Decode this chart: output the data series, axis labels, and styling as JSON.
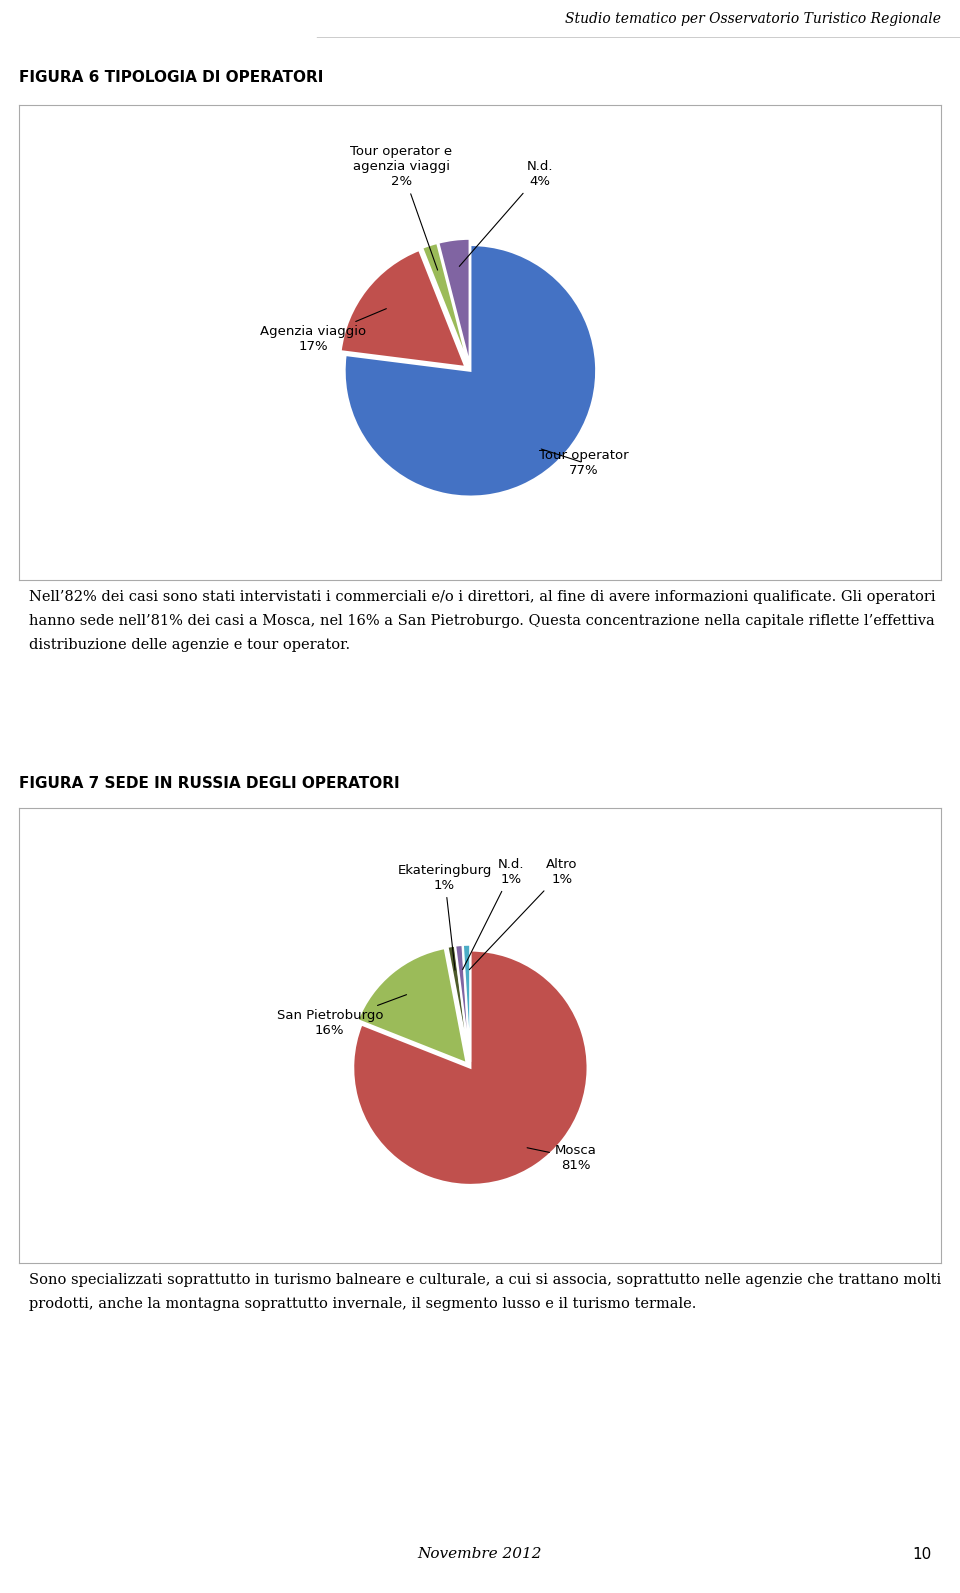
{
  "page_title": "Studio tematico per Osservatorio Turistico Regionale",
  "fig6_title": "FIGURA 6 TIPOLOGIA DI OPERATORI",
  "fig7_title": "FIGURA 7 SEDE IN RUSSIA DEGLI OPERATORI",
  "pie1_values": [
    77,
    17,
    2,
    4
  ],
  "pie1_colors": [
    "#4472C4",
    "#C0504D",
    "#9BBB59",
    "#8064A2"
  ],
  "pie1_explode": [
    0,
    0.05,
    0.05,
    0.05
  ],
  "pie2_values": [
    81,
    16,
    1,
    1,
    1
  ],
  "pie2_colors": [
    "#C0504D",
    "#9BBB59",
    "#4D5A2A",
    "#8064A2",
    "#4BACC6"
  ],
  "pie2_explode": [
    0,
    0.05,
    0.05,
    0.05,
    0.05
  ],
  "text1": "Nell’82% dei casi sono stati intervistati i commerciali e/o i direttori, al fine di avere informazioni qualificate. Gli operatori hanno sede nell’81% dei casi a Mosca, nel 16% a San Pietroburgo. Questa concentrazione nella capitale riflette l’effettiva distribuzione delle agenzie e tour operator.",
  "text2": "Sono specializzati soprattutto in turismo balneare e culturale, a cui si associa, soprattutto nelle agenzie che trattano molti prodotti, anche la montagna soprattutto invernale, il segmento lusso e il turismo termale.",
  "footer": "Novembre 2012",
  "page_num": "10",
  "background_color": "#FFFFFF"
}
